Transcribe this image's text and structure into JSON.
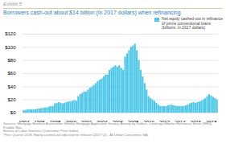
{
  "chart_data": {
    "type": "bar",
    "title": "Borrowers cash-out about $14 billion (in 2017 dollars) when refinancing",
    "subtitle": "Exhibit 5",
    "annotations": [
      "Sources: Mortgage Bankers Association Weekly Mortgage Application Survey; Activity by Dollars, CoreLogic/Market Refinance Share (MR4), Freddie Mac,\nBureau of Labor Statistics (Consumer Price Index).\n*First Quarter 2018. Equity cashed-out adjusted for inflation (2017 Q1 - All Urban Consumers SA)."
    ],
    "categories": [
      "1994",
      null,
      null,
      null,
      null,
      null,
      null,
      null,
      "1996",
      null,
      null,
      null,
      null,
      null,
      null,
      null,
      "1998",
      null,
      null,
      null,
      null,
      null,
      null,
      null,
      "2000",
      null,
      null,
      null,
      null,
      null,
      null,
      null,
      "2002",
      null,
      null,
      null,
      null,
      null,
      null,
      null,
      "2004",
      null,
      null,
      null,
      null,
      null,
      null,
      null,
      "2006",
      null,
      null,
      null,
      null,
      null,
      null,
      null,
      "2008",
      null,
      null,
      null,
      null,
      null,
      null,
      null,
      "2010",
      null,
      null,
      null,
      null,
      null,
      null,
      null,
      "2012",
      null,
      null,
      null,
      null,
      null,
      null,
      null,
      "2014",
      null,
      null,
      null,
      null,
      null,
      null,
      null,
      "2016",
      null,
      null,
      null,
      null,
      null,
      null,
      null,
      "2018",
      null,
      null,
      null
    ],
    "series": [
      {
        "name": "Net equity cashed-out in refinance\nof prime conventional loans\n(billions, in 2017 dollars)",
        "color": "#4DC8E8",
        "values": [
          4,
          4,
          5,
          5,
          5,
          5,
          5,
          6,
          6,
          7,
          7,
          8,
          8,
          9,
          10,
          10,
          14,
          15,
          16,
          15,
          14,
          15,
          16,
          17,
          17,
          18,
          19,
          18,
          25,
          28,
          30,
          32,
          32,
          35,
          38,
          40,
          42,
          45,
          48,
          50,
          52,
          55,
          58,
          58,
          65,
          68,
          70,
          72,
          70,
          72,
          68,
          65,
          85,
          90,
          95,
          100,
          102,
          105,
          95,
          80,
          65,
          55,
          45,
          35,
          25,
          22,
          20,
          18,
          15,
          12,
          10,
          10,
          10,
          10,
          11,
          12,
          12,
          11,
          10,
          10,
          10,
          10,
          10,
          11,
          12,
          14,
          15,
          16,
          15,
          16,
          17,
          18,
          20,
          22,
          25,
          28,
          26,
          24,
          22,
          20
        ]
      }
    ],
    "ylim": [
      0,
      120
    ],
    "yticks": [
      {
        "value": 0,
        "label": "$0"
      },
      {
        "value": 20,
        "label": "$20"
      },
      {
        "value": 40,
        "label": "$40"
      },
      {
        "value": 60,
        "label": "$60"
      },
      {
        "value": 80,
        "label": "$80"
      },
      {
        "value": 100,
        "label": "$100"
      },
      {
        "value": 120,
        "label": "$120"
      }
    ],
    "grid": true,
    "legend": "upper right"
  }
}
